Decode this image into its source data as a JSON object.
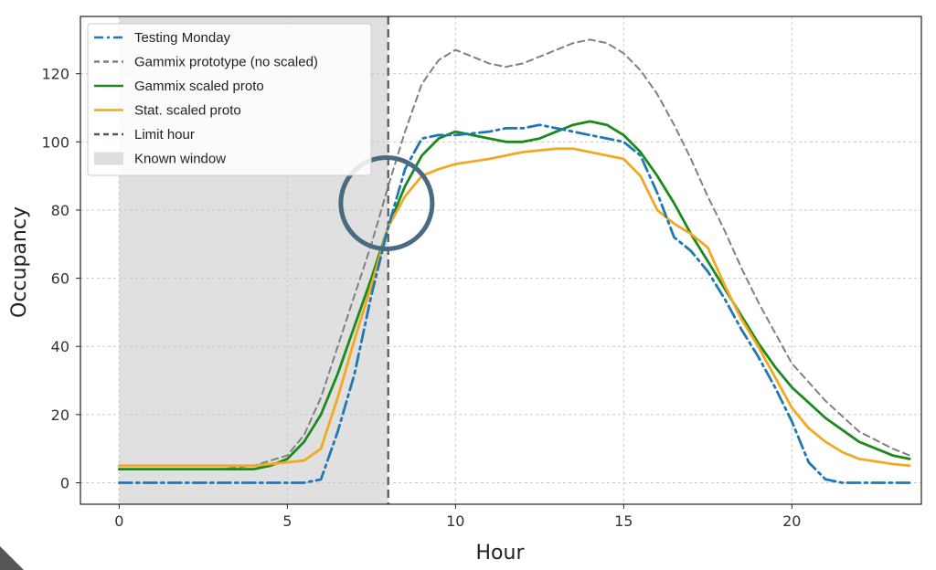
{
  "chart_data": {
    "type": "line",
    "title": "",
    "xlabel": "Hour",
    "ylabel": "Occupancy",
    "xlim": [
      -1.15,
      23.85
    ],
    "ylim": [
      -6.3,
      136.8
    ],
    "xticks": [
      0,
      5,
      10,
      15,
      20
    ],
    "yticks": [
      0,
      20,
      40,
      60,
      80,
      100,
      120
    ],
    "grid": true,
    "legend_position": "top-left",
    "known_window": {
      "label": "Known window",
      "x_start": 0,
      "x_end": 8
    },
    "limit_hour": {
      "label": "Limit hour",
      "x": 8
    },
    "highlight_circle": {
      "x": 7.95,
      "y": 82,
      "color": "#4a6a80"
    },
    "series": [
      {
        "name": "Testing Monday",
        "color": "#1f77b4",
        "style": "dashdot",
        "x": [
          0,
          1,
          2,
          3,
          4,
          5,
          5.5,
          6,
          6.5,
          7,
          7.5,
          8,
          8.5,
          9,
          9.5,
          10,
          11,
          11.5,
          12,
          12.5,
          13,
          14,
          15,
          15.5,
          16,
          16.5,
          17,
          17.5,
          18,
          18.5,
          19,
          19.5,
          20,
          20.5,
          21,
          21.5,
          22,
          23,
          23.5
        ],
        "y": [
          0,
          0,
          0,
          0,
          0,
          0,
          0,
          1,
          15,
          32,
          55,
          75,
          92,
          101,
          102,
          102,
          103,
          104,
          104,
          105,
          104,
          102,
          100,
          96,
          85,
          72,
          68,
          62,
          54,
          45,
          37,
          28,
          18,
          6,
          1,
          0,
          0,
          0,
          0
        ]
      },
      {
        "name": "Gammix prototype (no scaled)",
        "color": "#808080",
        "style": "dashed",
        "x": [
          0,
          1,
          2,
          3,
          4,
          5,
          5.5,
          6,
          6.5,
          7,
          7.5,
          8,
          8.5,
          9,
          9.5,
          10,
          10.5,
          11,
          11.5,
          12,
          12.5,
          13,
          13.5,
          14,
          14.5,
          15,
          15.5,
          16,
          16.5,
          17,
          17.5,
          18,
          18.5,
          19,
          19.5,
          20,
          21,
          22,
          23,
          23.5
        ],
        "y": [
          4,
          4,
          4,
          4,
          5,
          8,
          14,
          25,
          40,
          55,
          70,
          87,
          103,
          117,
          124,
          127,
          125,
          123,
          122,
          123,
          125,
          127,
          129,
          130,
          129,
          126,
          121,
          114,
          105,
          95,
          84,
          74,
          63,
          53,
          44,
          35,
          24,
          15,
          10,
          8
        ]
      },
      {
        "name": "Gammix scaled proto",
        "color": "#1a8a1a",
        "style": "solid",
        "x": [
          0,
          1,
          2,
          3,
          4,
          4.5,
          5,
          5.5,
          6,
          6.5,
          7,
          7.5,
          8,
          8.5,
          9,
          9.5,
          10,
          10.5,
          11,
          11.5,
          12,
          12.5,
          13,
          13.5,
          14,
          14.5,
          15,
          15.5,
          16,
          16.5,
          17,
          17.5,
          18,
          18.5,
          19,
          19.5,
          20,
          21,
          22,
          23,
          23.5
        ],
        "y": [
          4,
          4,
          4,
          4,
          4,
          5,
          7,
          12,
          20,
          32,
          46,
          60,
          75,
          87,
          96,
          101,
          103,
          102,
          101,
          100,
          100,
          101,
          103,
          105,
          106,
          105,
          102,
          97,
          90,
          82,
          73,
          65,
          57,
          49,
          41,
          34,
          28,
          19,
          12,
          8,
          7
        ]
      },
      {
        "name": "Stat. scaled proto",
        "color": "#f2a922",
        "style": "solid",
        "x": [
          0,
          1,
          2,
          3,
          4,
          5,
          5.5,
          6,
          6.5,
          7,
          7.5,
          8,
          8.5,
          9,
          9.5,
          10,
          11,
          12,
          13,
          13.5,
          14,
          15,
          15.5,
          16,
          16.5,
          17,
          17.5,
          18,
          18.5,
          19,
          19.5,
          20,
          20.5,
          21,
          21.5,
          22,
          23,
          23.5
        ],
        "y": [
          5,
          5,
          5,
          5,
          5,
          6,
          6.5,
          10,
          25,
          42,
          58,
          75,
          84,
          90,
          92,
          93.5,
          95,
          97,
          98,
          98,
          97,
          95,
          90,
          80,
          76,
          73,
          69,
          58,
          48,
          40,
          31,
          22,
          16,
          12,
          9,
          7,
          5.5,
          5
        ]
      }
    ]
  }
}
